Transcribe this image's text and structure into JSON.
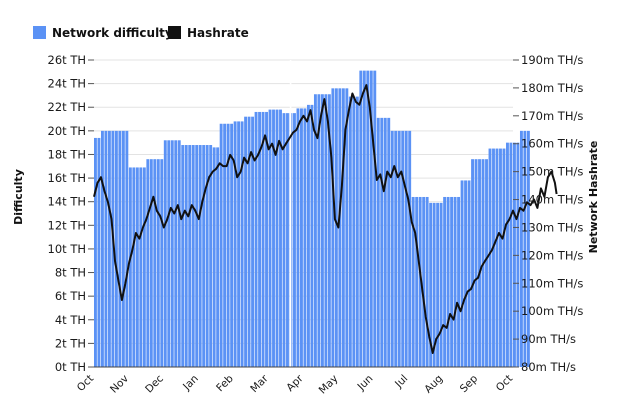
{
  "chart_data": {
    "type": "bar",
    "title": "",
    "legend": {
      "placement": "top-left",
      "entries": [
        {
          "name": "Network difficulty",
          "color": "#5b92f5",
          "marker": "square"
        },
        {
          "name": "Hashrate",
          "color": "#111111",
          "marker": "square"
        }
      ]
    },
    "grid": true,
    "x_axis": {
      "labels": [
        "Oct",
        "Nov",
        "Dec",
        "Jan",
        "Feb",
        "Mar",
        "Apr",
        "May",
        "Jun",
        "Jul",
        "Aug",
        "Sep",
        "Oct"
      ],
      "label_rotation": -45
    },
    "y_left": {
      "title": "Difficulty",
      "unit": "t TH",
      "range": [
        0,
        26
      ],
      "ticks": [
        "0t TH",
        "2t TH",
        "4t TH",
        "6t TH",
        "8t TH",
        "10t TH",
        "12t TH",
        "14t TH",
        "16t TH",
        "18t TH",
        "20t TH",
        "22t TH",
        "24t TH",
        "26t TH"
      ]
    },
    "y_right": {
      "title": "Network Hashrate",
      "unit": "m TH/s",
      "range": [
        80,
        190
      ],
      "ticks": [
        "80m TH/s",
        "90m TH/s",
        "100m TH/s",
        "110m TH/s",
        "120m TH/s",
        "130m TH/s",
        "140m TH/s",
        "150m TH/s",
        "160m TH/s",
        "170m TH/s",
        "180m TH/s",
        "190m TH/s"
      ]
    },
    "series": [
      {
        "name": "Network difficulty",
        "type": "step-bar",
        "axis": "left",
        "color": "#5b92f5",
        "points": [
          [
            0.0,
            19.4
          ],
          [
            0.2,
            20.0
          ],
          [
            1.0,
            16.9
          ],
          [
            1.5,
            17.6
          ],
          [
            2.0,
            19.2
          ],
          [
            2.5,
            18.8
          ],
          [
            3.4,
            18.6
          ],
          [
            3.6,
            20.6
          ],
          [
            4.0,
            20.8
          ],
          [
            4.3,
            21.2
          ],
          [
            4.6,
            21.6
          ],
          [
            5.0,
            21.8
          ],
          [
            5.4,
            21.5
          ],
          [
            5.8,
            21.9
          ],
          [
            6.1,
            22.2
          ],
          [
            6.3,
            23.1
          ],
          [
            6.8,
            23.6
          ],
          [
            7.3,
            22.9
          ],
          [
            7.6,
            25.1
          ],
          [
            8.1,
            21.1
          ],
          [
            8.5,
            20.0
          ],
          [
            9.1,
            14.4
          ],
          [
            9.6,
            13.9
          ],
          [
            10.0,
            14.4
          ],
          [
            10.5,
            15.8
          ],
          [
            10.8,
            17.6
          ],
          [
            11.3,
            18.5
          ],
          [
            11.8,
            19.0
          ],
          [
            12.2,
            20.0
          ],
          [
            12.5,
            20.0
          ]
        ]
      },
      {
        "name": "Hashrate",
        "type": "line",
        "axis": "right",
        "color": "#111111",
        "points": [
          [
            0.0,
            141
          ],
          [
            0.1,
            146
          ],
          [
            0.2,
            148
          ],
          [
            0.3,
            143
          ],
          [
            0.4,
            139
          ],
          [
            0.5,
            133
          ],
          [
            0.6,
            118
          ],
          [
            0.7,
            111
          ],
          [
            0.8,
            104
          ],
          [
            0.9,
            110
          ],
          [
            1.0,
            117
          ],
          [
            1.1,
            122
          ],
          [
            1.2,
            128
          ],
          [
            1.3,
            126
          ],
          [
            1.4,
            130
          ],
          [
            1.5,
            133
          ],
          [
            1.6,
            137
          ],
          [
            1.7,
            141
          ],
          [
            1.8,
            136
          ],
          [
            1.9,
            134
          ],
          [
            2.0,
            130
          ],
          [
            2.1,
            133
          ],
          [
            2.2,
            137
          ],
          [
            2.3,
            135
          ],
          [
            2.4,
            138
          ],
          [
            2.5,
            133
          ],
          [
            2.6,
            136
          ],
          [
            2.7,
            134
          ],
          [
            2.8,
            138
          ],
          [
            2.9,
            136
          ],
          [
            3.0,
            133
          ],
          [
            3.1,
            139
          ],
          [
            3.2,
            144
          ],
          [
            3.3,
            148
          ],
          [
            3.4,
            150
          ],
          [
            3.5,
            151
          ],
          [
            3.6,
            153
          ],
          [
            3.7,
            152
          ],
          [
            3.8,
            152
          ],
          [
            3.9,
            156
          ],
          [
            4.0,
            154
          ],
          [
            4.1,
            148
          ],
          [
            4.2,
            150
          ],
          [
            4.3,
            155
          ],
          [
            4.4,
            153
          ],
          [
            4.5,
            157
          ],
          [
            4.6,
            154
          ],
          [
            4.7,
            156
          ],
          [
            4.8,
            159
          ],
          [
            4.9,
            163
          ],
          [
            5.0,
            158
          ],
          [
            5.1,
            160
          ],
          [
            5.2,
            156
          ],
          [
            5.3,
            161
          ],
          [
            5.4,
            158
          ],
          [
            5.5,
            160
          ],
          [
            5.6,
            162
          ],
          [
            5.7,
            164
          ],
          [
            5.8,
            165
          ],
          [
            5.9,
            168
          ],
          [
            6.0,
            170
          ],
          [
            6.1,
            168
          ],
          [
            6.2,
            172
          ],
          [
            6.3,
            165
          ],
          [
            6.4,
            162
          ],
          [
            6.5,
            170
          ],
          [
            6.6,
            176
          ],
          [
            6.7,
            168
          ],
          [
            6.8,
            155
          ],
          [
            6.9,
            133
          ],
          [
            7.0,
            130
          ],
          [
            7.1,
            145
          ],
          [
            7.2,
            165
          ],
          [
            7.3,
            172
          ],
          [
            7.4,
            178
          ],
          [
            7.5,
            175
          ],
          [
            7.6,
            174
          ],
          [
            7.7,
            178
          ],
          [
            7.8,
            181
          ],
          [
            7.9,
            173
          ],
          [
            8.0,
            160
          ],
          [
            8.1,
            147
          ],
          [
            8.2,
            149
          ],
          [
            8.3,
            143
          ],
          [
            8.4,
            150
          ],
          [
            8.5,
            148
          ],
          [
            8.6,
            152
          ],
          [
            8.7,
            148
          ],
          [
            8.8,
            150
          ],
          [
            8.9,
            145
          ],
          [
            9.0,
            140
          ],
          [
            9.1,
            132
          ],
          [
            9.2,
            128
          ],
          [
            9.3,
            118
          ],
          [
            9.4,
            108
          ],
          [
            9.5,
            98
          ],
          [
            9.6,
            91
          ],
          [
            9.7,
            85
          ],
          [
            9.8,
            90
          ],
          [
            9.9,
            92
          ],
          [
            10.0,
            95
          ],
          [
            10.1,
            94
          ],
          [
            10.2,
            99
          ],
          [
            10.3,
            97
          ],
          [
            10.4,
            103
          ],
          [
            10.5,
            100
          ],
          [
            10.6,
            104
          ],
          [
            10.7,
            107
          ],
          [
            10.8,
            108
          ],
          [
            10.9,
            111
          ],
          [
            11.0,
            112
          ],
          [
            11.1,
            116
          ],
          [
            11.2,
            118
          ],
          [
            11.3,
            120
          ],
          [
            11.4,
            122
          ],
          [
            11.5,
            125
          ],
          [
            11.6,
            128
          ],
          [
            11.7,
            126
          ],
          [
            11.8,
            131
          ],
          [
            11.9,
            133
          ],
          [
            12.0,
            136
          ],
          [
            12.1,
            133
          ],
          [
            12.2,
            137
          ],
          [
            12.3,
            136
          ],
          [
            12.4,
            139
          ],
          [
            12.5,
            138
          ],
          [
            12.6,
            140
          ],
          [
            12.7,
            137
          ],
          [
            12.8,
            144
          ],
          [
            12.9,
            141
          ],
          [
            13.0,
            148
          ],
          [
            13.1,
            150
          ],
          [
            13.2,
            146
          ],
          [
            13.25,
            142
          ]
        ]
      }
    ]
  }
}
